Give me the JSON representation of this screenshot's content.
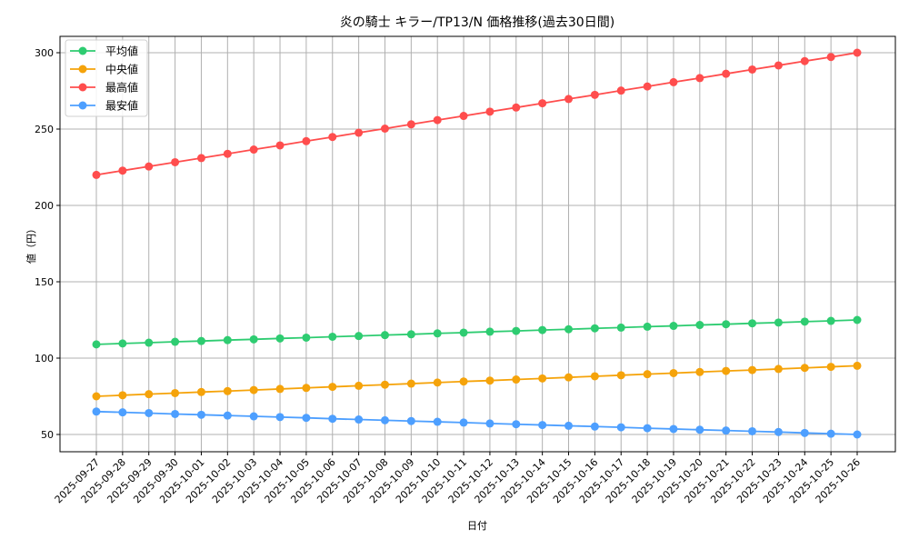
{
  "chart_data": {
    "type": "line",
    "title": "炎の騎士 キラー/TP13/N 価格推移(過去30日間)",
    "xlabel": "日付",
    "ylabel": "値（円）",
    "ylim": [
      37,
      312
    ],
    "yticks": [
      50,
      100,
      150,
      200,
      250,
      300
    ],
    "grid": true,
    "legend_position": "upper left",
    "categories": [
      "2025-09-27",
      "2025-09-28",
      "2025-09-29",
      "2025-09-30",
      "2025-10-01",
      "2025-10-02",
      "2025-10-03",
      "2025-10-04",
      "2025-10-05",
      "2025-10-06",
      "2025-10-07",
      "2025-10-08",
      "2025-10-09",
      "2025-10-10",
      "2025-10-11",
      "2025-10-12",
      "2025-10-13",
      "2025-10-14",
      "2025-10-15",
      "2025-10-16",
      "2025-10-17",
      "2025-10-18",
      "2025-10-19",
      "2025-10-20",
      "2025-10-21",
      "2025-10-22",
      "2025-10-23",
      "2025-10-24",
      "2025-10-25",
      "2025-10-26"
    ],
    "series": [
      {
        "name": "平均値",
        "color": "#2ecc71",
        "values": [
          109.0,
          109.6,
          110.1,
          110.7,
          111.2,
          111.8,
          112.3,
          112.9,
          113.4,
          114.0,
          114.5,
          115.1,
          115.6,
          116.2,
          116.7,
          117.3,
          117.8,
          118.4,
          118.9,
          119.5,
          120.0,
          120.6,
          121.1,
          121.7,
          122.2,
          122.8,
          123.3,
          123.9,
          124.4,
          125.0
        ]
      },
      {
        "name": "中央値",
        "color": "#f5a30a",
        "values": [
          75.0,
          75.7,
          76.4,
          77.1,
          77.8,
          78.4,
          79.1,
          79.8,
          80.5,
          81.2,
          81.9,
          82.6,
          83.3,
          84.0,
          84.7,
          85.3,
          86.0,
          86.7,
          87.4,
          88.1,
          88.8,
          89.5,
          90.2,
          90.9,
          91.6,
          92.2,
          92.9,
          93.6,
          94.3,
          95.0
        ]
      },
      {
        "name": "最高値",
        "color": "#ff4d4d",
        "values": [
          220.0,
          222.8,
          225.5,
          228.3,
          231.0,
          233.8,
          236.6,
          239.3,
          242.1,
          244.8,
          247.6,
          250.3,
          253.1,
          255.9,
          258.6,
          261.4,
          264.1,
          266.9,
          269.7,
          272.4,
          275.2,
          277.9,
          280.7,
          283.4,
          286.2,
          289.0,
          291.7,
          294.5,
          297.2,
          300.0
        ]
      },
      {
        "name": "最安値",
        "color": "#4d9fff",
        "values": [
          65.0,
          64.5,
          64.0,
          63.4,
          62.9,
          62.4,
          61.9,
          61.4,
          60.9,
          60.3,
          59.8,
          59.3,
          58.8,
          58.3,
          57.8,
          57.2,
          56.7,
          56.2,
          55.7,
          55.2,
          54.7,
          54.1,
          53.6,
          53.1,
          52.6,
          52.1,
          51.6,
          51.0,
          50.5,
          50.0
        ]
      }
    ]
  }
}
